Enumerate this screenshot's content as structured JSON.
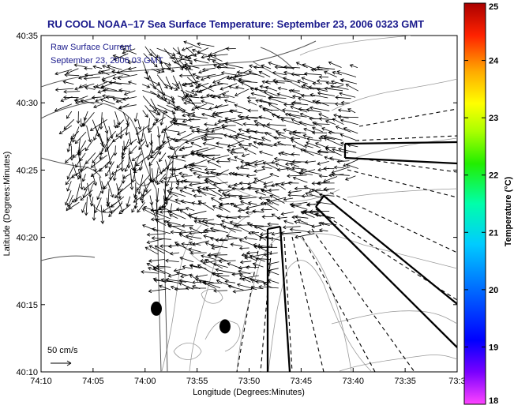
{
  "chart_data": {
    "type": "map",
    "title": "RU COOL  NOAA–17  Sea Surface Temperature:  September 23, 2006 0323 GMT",
    "overlay": {
      "label_line1": "Raw Surface Current",
      "label_line2": "September 23, 2006 03 GMT",
      "scale_label": "50 cm/s"
    },
    "xlabel": "Longitude (Degrees:Minutes)",
    "ylabel": "Latitude (Degrees:Minutes)",
    "x_ticks": [
      "74:10",
      "74:05",
      "74:00",
      "73:55",
      "73:50",
      "73:45",
      "73:40",
      "73:35",
      "73:3"
    ],
    "y_ticks": [
      "40:35",
      "40:30",
      "40:25",
      "40:20",
      "40:15",
      "40:10"
    ],
    "x_range_deg": [
      -74.1667,
      -73.5
    ],
    "y_range_deg": [
      40.1667,
      40.5833
    ],
    "colorbar": {
      "label": "Temperature (°C)",
      "ticks": [
        "25",
        "24",
        "23",
        "22",
        "21",
        "20",
        "19",
        "18"
      ],
      "range": [
        18,
        25
      ],
      "colors": [
        "#ff33ff",
        "#5500ff",
        "#0000ff",
        "#0066ff",
        "#00ccff",
        "#00ffaa",
        "#00ee00",
        "#aaff00",
        "#ffff00",
        "#ffaa00",
        "#ff4400",
        "#ff0000",
        "#aa0000"
      ]
    },
    "markers": [
      {
        "lon": -73.982,
        "lat": 40.245
      },
      {
        "lon": -73.872,
        "lat": 40.223
      }
    ]
  }
}
